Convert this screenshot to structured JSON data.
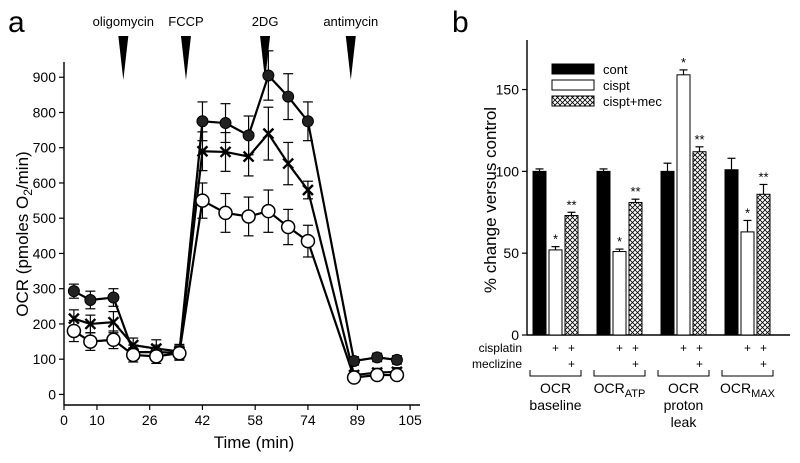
{
  "chart_data": [
    {
      "panel": "a",
      "type": "line",
      "xlabel": "Time (min)",
      "ylabel": "OCR (pmoles O2/min)",
      "x_ticks": [
        0,
        10,
        26,
        42,
        58,
        74,
        89,
        105
      ],
      "y_ticks": [
        0,
        100,
        200,
        300,
        400,
        500,
        600,
        700,
        800,
        900
      ],
      "xlim": [
        0,
        108
      ],
      "ylim": [
        -30,
        1000
      ],
      "injections": [
        {
          "label": "oligomycin",
          "time": 18
        },
        {
          "label": "FCCP",
          "time": 37
        },
        {
          "label": "2DG",
          "time": 61
        },
        {
          "label": "antimycin",
          "time": 87
        }
      ],
      "x": [
        3,
        8,
        15,
        21,
        28,
        35,
        42,
        49,
        56,
        62,
        68,
        74,
        88,
        95,
        101
      ],
      "series": [
        {
          "name": "cont",
          "marker": "filled-circle",
          "values": [
            293,
            268,
            275,
            120,
            120,
            118,
            775,
            770,
            735,
            905,
            845,
            775,
            95,
            105,
            98
          ],
          "errors": [
            20,
            25,
            25,
            20,
            20,
            20,
            55,
            55,
            55,
            70,
            65,
            55,
            12,
            12,
            12
          ]
        },
        {
          "name": "cispt+mec",
          "marker": "cross",
          "values": [
            215,
            200,
            205,
            140,
            130,
            122,
            690,
            688,
            675,
            740,
            655,
            580,
            55,
            62,
            64
          ],
          "errors": [
            25,
            25,
            30,
            20,
            25,
            20,
            55,
            55,
            55,
            75,
            60,
            25,
            12,
            12,
            12
          ]
        },
        {
          "name": "cispt",
          "marker": "open-circle",
          "values": [
            180,
            150,
            155,
            112,
            108,
            117,
            550,
            515,
            505,
            520,
            475,
            435,
            48,
            55,
            55
          ],
          "errors": [
            30,
            25,
            25,
            20,
            20,
            20,
            50,
            55,
            55,
            60,
            50,
            45,
            12,
            12,
            12
          ]
        }
      ]
    },
    {
      "panel": "b",
      "type": "bar",
      "ylabel": "% change versus control",
      "ylim": [
        0,
        165
      ],
      "y_ticks": [
        0,
        50,
        100,
        150
      ],
      "legend": [
        "cont",
        "cispt",
        "cispt+mec"
      ],
      "row_labels": [
        "cisplatin",
        "meclizine"
      ],
      "groups": [
        {
          "name": "OCR",
          "name_line2": "baseline",
          "sub": ""
        },
        {
          "name": "OCR",
          "name_line2": "",
          "sub": "ATP"
        },
        {
          "name": "OCR",
          "name_line2": "proton",
          "name_line3": "leak",
          "sub": ""
        },
        {
          "name": "OCR",
          "name_line2": "",
          "sub": "MAX"
        }
      ],
      "series": [
        {
          "name": "cont",
          "values": [
            100,
            100,
            100,
            101
          ],
          "errors": [
            1.5,
            1.5,
            5,
            7
          ],
          "annot": [
            "",
            "",
            "",
            ""
          ],
          "cisplatin": "",
          "meclizine": ""
        },
        {
          "name": "cispt",
          "values": [
            52,
            51,
            159,
            63
          ],
          "errors": [
            2,
            1.5,
            3,
            7
          ],
          "annot": [
            "*",
            "*",
            "*",
            "*"
          ],
          "cisplatin": "+",
          "meclizine": ""
        },
        {
          "name": "cispt+mec",
          "values": [
            73,
            81,
            112,
            86
          ],
          "errors": [
            2,
            2,
            3,
            6
          ],
          "annot": [
            "**",
            "**",
            "**",
            "**"
          ],
          "cisplatin": "+",
          "meclizine": "+"
        }
      ]
    }
  ]
}
